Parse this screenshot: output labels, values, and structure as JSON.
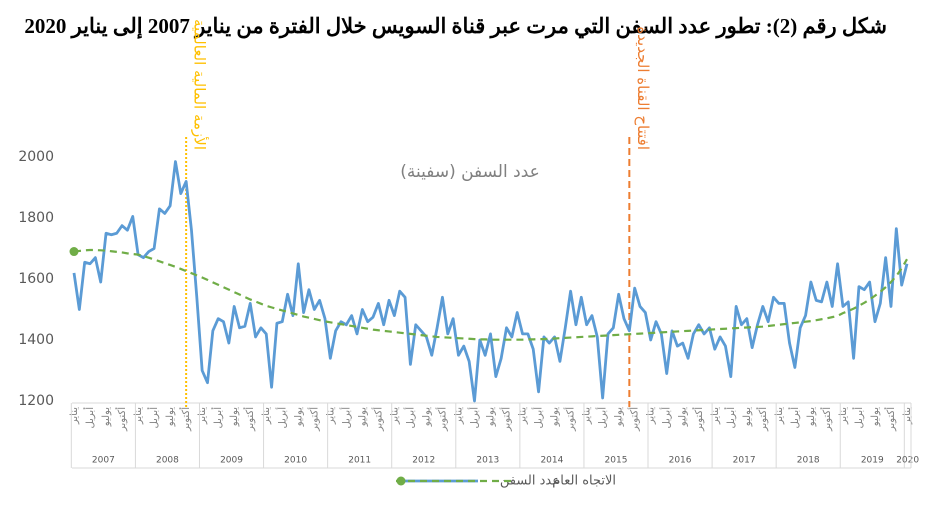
{
  "chart_data": {
    "type": "line",
    "title": "شكل رقم (2): تطور عدد السفن التي مرت عبر قناة السويس خلال الفترة من يناير 2007 إلى يناير 2020",
    "subtitle": "عدد السفن (سفينة)",
    "categories": [
      "يناير",
      null,
      null,
      "أبريل",
      null,
      null,
      "يوليو",
      null,
      null,
      "أكتوبر",
      null,
      null,
      "يناير",
      null,
      null,
      "أبريل",
      null,
      null,
      "يوليو",
      null,
      null,
      "أكتوبر",
      null,
      null,
      "يناير",
      null,
      null,
      "أبريل",
      null,
      null,
      "يوليو",
      null,
      null,
      "أكتوبر",
      null,
      null,
      "يناير",
      null,
      null,
      "أبريل",
      null,
      null,
      "يوليو",
      null,
      null,
      "أكتوبر",
      null,
      null,
      "يناير",
      null,
      null,
      "أبريل",
      null,
      null,
      "يوليو",
      null,
      null,
      "أكتوبر",
      null,
      null,
      "يناير",
      null,
      null,
      "أبريل",
      null,
      null,
      "يوليو",
      null,
      null,
      "أكتوبر",
      null,
      null,
      "يناير",
      null,
      null,
      "أبريل",
      null,
      null,
      "يوليو",
      null,
      null,
      "أكتوبر",
      null,
      null,
      "يناير",
      null,
      null,
      "أبريل",
      null,
      null,
      "يوليو",
      null,
      null,
      "أكتوبر",
      null,
      null,
      "يناير",
      null,
      null,
      "أبريل",
      null,
      null,
      "يوليو",
      null,
      null,
      "أكتوبر",
      null,
      null,
      "يناير",
      null,
      null,
      "أبريل",
      null,
      null,
      "يوليو",
      null,
      null,
      "أكتوبر",
      null,
      null,
      "يناير",
      null,
      null,
      "أبريل",
      null,
      null,
      "يوليو",
      null,
      null,
      "أكتوبر",
      null,
      null,
      "يناير",
      null,
      null,
      "أبريل",
      null,
      null,
      "يوليو",
      null,
      null,
      "أكتوبر",
      null,
      null,
      "يناير",
      null,
      null,
      "أبريل",
      null,
      null,
      "يوليو",
      null,
      null,
      "أكتوبر",
      null,
      null,
      "يناير"
    ],
    "year_labels": [
      "2007",
      "2008",
      "2009",
      "2010",
      "2011",
      "2012",
      "2013",
      "2014",
      "2015",
      "2016",
      "2017",
      "2018",
      "2019",
      "2020"
    ],
    "series": [
      {
        "name": "عدد السفن",
        "color": "#5b9bd5",
        "dash": false,
        "values": [
          1620,
          1500,
          1655,
          1650,
          1670,
          1590,
          1750,
          1745,
          1750,
          1775,
          1760,
          1805,
          1680,
          1670,
          1690,
          1700,
          1830,
          1815,
          1840,
          1985,
          1880,
          1920,
          1760,
          1540,
          1300,
          1260,
          1430,
          1470,
          1460,
          1390,
          1510,
          1440,
          1445,
          1520,
          1410,
          1440,
          1420,
          1245,
          1455,
          1460,
          1550,
          1480,
          1650,
          1490,
          1565,
          1500,
          1530,
          1470,
          1340,
          1430,
          1460,
          1450,
          1480,
          1420,
          1500,
          1460,
          1475,
          1520,
          1450,
          1530,
          1480,
          1560,
          1540,
          1320,
          1450,
          1430,
          1410,
          1350,
          1440,
          1540,
          1420,
          1470,
          1350,
          1380,
          1330,
          1200,
          1400,
          1350,
          1420,
          1280,
          1340,
          1440,
          1410,
          1490,
          1420,
          1420,
          1370,
          1230,
          1410,
          1390,
          1410,
          1330,
          1440,
          1560,
          1450,
          1540,
          1450,
          1480,
          1410,
          1210,
          1420,
          1440,
          1550,
          1470,
          1430,
          1570,
          1510,
          1490,
          1400,
          1460,
          1420,
          1290,
          1430,
          1380,
          1390,
          1340,
          1420,
          1450,
          1420,
          1440,
          1370,
          1410,
          1380,
          1280,
          1510,
          1450,
          1470,
          1375,
          1450,
          1510,
          1460,
          1540,
          1520,
          1520,
          1390,
          1310,
          1440,
          1480,
          1590,
          1530,
          1525,
          1590,
          1510,
          1650,
          1510,
          1525,
          1340,
          1575,
          1565,
          1590,
          1460,
          1520,
          1670,
          1510,
          1765,
          1580,
          1650
        ]
      },
      {
        "name": "الاتجاه العام",
        "color": "#70ad47",
        "dash": true,
        "values": [
          1690,
          1692,
          1694,
          1695,
          1695,
          1694,
          1693,
          1691,
          1689,
          1687,
          1684,
          1682,
          1680,
          1675,
          1670,
          1664,
          1658,
          1652,
          1646,
          1640,
          1633,
          1626,
          1619,
          1612,
          1605,
          1597,
          1589,
          1581,
          1573,
          1565,
          1557,
          1549,
          1541,
          1533,
          1526,
          1519,
          1512,
          1507,
          1502,
          1497,
          1492,
          1487,
          1482,
          1477,
          1473,
          1469,
          1465,
          1461,
          1458,
          1455,
          1452,
          1449,
          1446,
          1443,
          1440,
          1437,
          1434,
          1432,
          1430,
          1428,
          1426,
          1424,
          1422,
          1420,
          1418,
          1416,
          1414,
          1412,
          1410,
          1409,
          1408,
          1407,
          1406,
          1405,
          1404,
          1403,
          1402,
          1402,
          1401,
          1401,
          1401,
          1401,
          1401,
          1401,
          1401,
          1402,
          1402,
          1403,
          1403,
          1404,
          1405,
          1406,
          1407,
          1408,
          1409,
          1410,
          1411,
          1412,
          1413,
          1414,
          1415,
          1416,
          1417,
          1418,
          1419,
          1420,
          1421,
          1422,
          1423,
          1424,
          1425,
          1426,
          1427,
          1428,
          1429,
          1430,
          1431,
          1432,
          1433,
          1434,
          1435,
          1436,
          1437,
          1438,
          1439,
          1440,
          1441,
          1442,
          1443,
          1444,
          1446,
          1448,
          1450,
          1452,
          1454,
          1456,
          1458,
          1460,
          1462,
          1465,
          1468,
          1471,
          1475,
          1479,
          1488,
          1495,
          1503,
          1512,
          1522,
          1533,
          1545,
          1558,
          1573,
          1590,
          1610,
          1635,
          1665
        ]
      }
    ],
    "annotations": [
      {
        "text": "الأزمة المالية العالمية",
        "at": 21,
        "color": "#ffc000",
        "style": "dotted"
      },
      {
        "text": "افتتاح القناة الجديدة",
        "at": 104,
        "color": "#ed7d31",
        "style": "dashed"
      }
    ],
    "ylim": [
      1200,
      2000
    ],
    "yticks": [
      1200,
      1400,
      1600,
      1800,
      2000
    ],
    "grid": false
  }
}
